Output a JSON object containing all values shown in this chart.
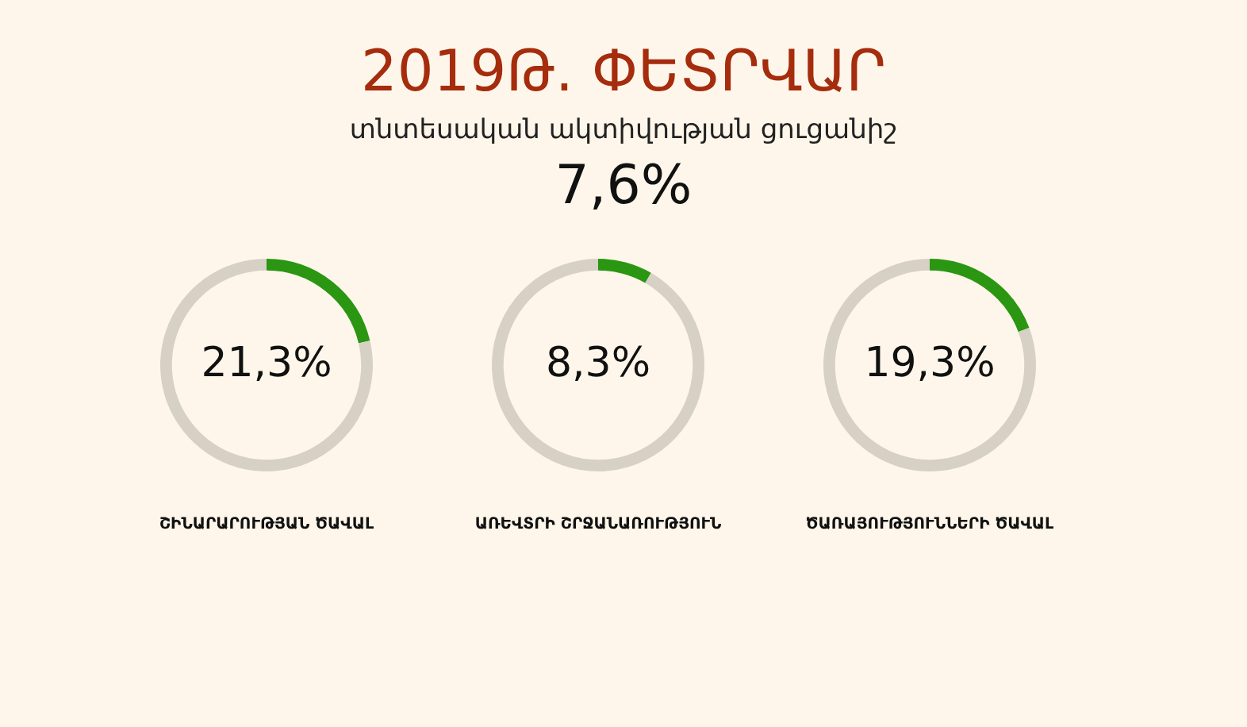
{
  "chart_data": [
    {
      "type": "other",
      "title": "2019Թ. ՓԵՏՐՎԱՐ",
      "subtitle": "տնտեսական ակտիվության ցուցանիշ",
      "annotations": [
        "7,6%"
      ]
    },
    {
      "type": "donut",
      "title": "ՇԻՆԱՐԱՐՈՒԹՅԱՆ ԾԱՎԱԼ",
      "categories": [
        null,
        null
      ],
      "values": [
        21.3,
        78.7
      ],
      "colors": [
        "#2a9612",
        "#d7d0c4"
      ],
      "value_labels": [
        "21,3%",
        null
      ]
    },
    {
      "type": "donut",
      "title": "ԱՌԵՎՏՐԻ ՇՐՋԱՆԱՌՈՒԹՅՈՒՆ",
      "categories": [
        null,
        null
      ],
      "values": [
        8.3,
        91.7
      ],
      "colors": [
        "#2a9612",
        "#d7d0c4"
      ],
      "value_labels": [
        "8,3%",
        null
      ]
    },
    {
      "type": "donut",
      "title": "ԾԱՌԱՅՈՒԹՅՈՒՆՆԵՐԻ ԾԱՎԱԼ",
      "categories": [
        null,
        null
      ],
      "values": [
        19.3,
        80.7
      ],
      "colors": [
        "#2a9612",
        "#d7d0c4"
      ],
      "value_labels": [
        "19,3%",
        null
      ]
    }
  ]
}
